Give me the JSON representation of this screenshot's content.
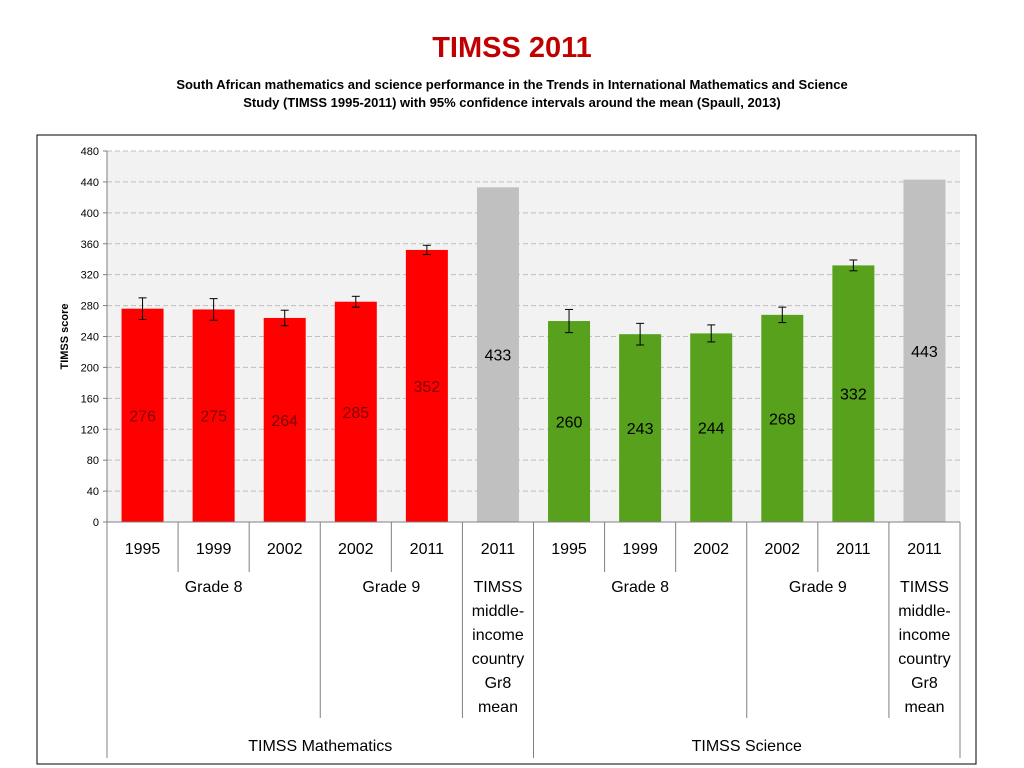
{
  "chart_data": {
    "type": "bar",
    "title": "TIMSS 2011",
    "subtitle": "South African mathematics and science performance in the Trends in International Mathematics and Science Study (TIMSS 1995-2011) with 95% confidence intervals around the mean (Spaull, 2013)",
    "ylabel": "TIMSS score",
    "xlabel": "",
    "ylim": [
      0,
      480
    ],
    "yticks": [
      0,
      40,
      80,
      120,
      160,
      200,
      240,
      280,
      320,
      360,
      400,
      440,
      480
    ],
    "grid": true,
    "categories": [
      "1995",
      "1999",
      "2002",
      "2002",
      "2011",
      "2011",
      "1995",
      "1999",
      "2002",
      "2002",
      "2011",
      "2011"
    ],
    "values": [
      276,
      275,
      264,
      285,
      352,
      433,
      260,
      243,
      244,
      268,
      332,
      443
    ],
    "ci_low": [
      262,
      261,
      254,
      278,
      346,
      null,
      245,
      229,
      233,
      258,
      325,
      null
    ],
    "ci_high": [
      290,
      289,
      274,
      292,
      358,
      null,
      275,
      257,
      255,
      278,
      339,
      null
    ],
    "bar_groups": [
      "math",
      "math",
      "math",
      "math",
      "math",
      "benchmark",
      "science",
      "science",
      "science",
      "science",
      "science",
      "benchmark"
    ],
    "group_labels": [
      {
        "label": "Grade 8",
        "span": [
          0,
          2
        ]
      },
      {
        "label": "Grade 9",
        "span": [
          3,
          4
        ]
      },
      {
        "label": "TIMSS middle-income country Gr8 mean",
        "lines": [
          "TIMSS",
          "middle-",
          "income",
          "country",
          "Gr8",
          "mean"
        ],
        "span": [
          5,
          5
        ]
      },
      {
        "label": "Grade 8",
        "span": [
          6,
          8
        ]
      },
      {
        "label": "Grade 9",
        "span": [
          9,
          10
        ]
      },
      {
        "label": "TIMSS middle-income country Gr8 mean",
        "lines": [
          "TIMSS",
          "middle-",
          "income",
          "country",
          "Gr8",
          "mean"
        ],
        "span": [
          11,
          11
        ]
      }
    ],
    "subject_labels": [
      {
        "label": "TIMSS Mathematics",
        "span": [
          0,
          5
        ]
      },
      {
        "label": "TIMSS Science",
        "span": [
          6,
          11
        ]
      }
    ]
  },
  "colors": {
    "math": "#ff0000",
    "science": "#57a11c",
    "benchmark": "#c0c0c0",
    "title": "#c00000",
    "plot_bg": "#f2f2f2",
    "grid": "#bfbfbf",
    "math_label": "#7f0000",
    "science_label": "#000000",
    "benchmark_label": "#000000"
  }
}
